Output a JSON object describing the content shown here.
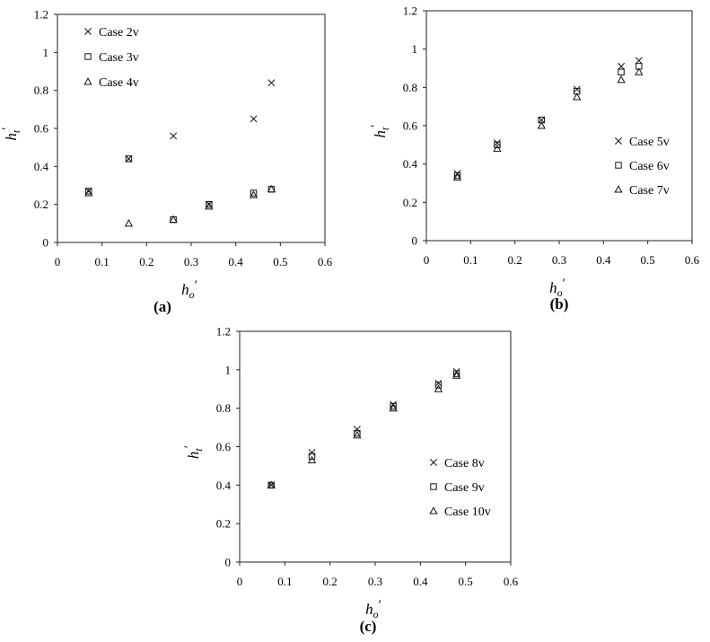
{
  "chart_data": [
    {
      "type": "scatter",
      "panel_label": "(a)",
      "xlabel": {
        "base": "h",
        "sub": "o",
        "prime": "′"
      },
      "ylabel": {
        "base": "h",
        "sub": "t",
        "prime": "′"
      },
      "xlim": [
        0,
        0.6
      ],
      "ylim": [
        0,
        1.2
      ],
      "xticks": [
        "0",
        "0.1",
        "0.2",
        "0.3",
        "0.4",
        "0.5",
        "0.6"
      ],
      "yticks": [
        "0",
        "0.2",
        "0.4",
        "0.6",
        "0.8",
        "1",
        "1.2"
      ],
      "grid": false,
      "legend_position": "top-left",
      "series": [
        {
          "name": "Case 2v",
          "marker": "x",
          "points": [
            [
              0.07,
              0.27
            ],
            [
              0.16,
              0.44
            ],
            [
              0.26,
              0.56
            ],
            [
              0.34,
              0.2
            ],
            [
              0.44,
              0.65
            ],
            [
              0.48,
              0.84
            ]
          ]
        },
        {
          "name": "Case 3v",
          "marker": "square",
          "points": [
            [
              0.07,
              0.27
            ],
            [
              0.16,
              0.44
            ],
            [
              0.26,
              0.12
            ],
            [
              0.34,
              0.2
            ],
            [
              0.44,
              0.26
            ],
            [
              0.48,
              0.28
            ]
          ]
        },
        {
          "name": "Case 4v",
          "marker": "triangle",
          "points": [
            [
              0.07,
              0.26
            ],
            [
              0.16,
              0.1
            ],
            [
              0.26,
              0.12
            ],
            [
              0.34,
              0.19
            ],
            [
              0.44,
              0.25
            ],
            [
              0.48,
              0.28
            ]
          ]
        }
      ]
    },
    {
      "type": "scatter",
      "panel_label": "(b)",
      "xlabel": {
        "base": "h",
        "sub": "o",
        "prime": "′"
      },
      "ylabel": {
        "base": "h",
        "sub": "t",
        "prime": "′"
      },
      "xlim": [
        0,
        0.6
      ],
      "ylim": [
        0,
        1.2
      ],
      "xticks": [
        "0",
        "0.1",
        "0.2",
        "0.3",
        "0.4",
        "0.5",
        "0.6"
      ],
      "yticks": [
        "0",
        "0.2",
        "0.4",
        "0.6",
        "0.8",
        "1",
        "1.2"
      ],
      "grid": false,
      "legend_position": "right",
      "series": [
        {
          "name": "Case 5v",
          "marker": "x",
          "points": [
            [
              0.07,
              0.35
            ],
            [
              0.16,
              0.51
            ],
            [
              0.26,
              0.63
            ],
            [
              0.34,
              0.79
            ],
            [
              0.44,
              0.91
            ],
            [
              0.48,
              0.94
            ]
          ]
        },
        {
          "name": "Case 6v",
          "marker": "square",
          "points": [
            [
              0.07,
              0.34
            ],
            [
              0.16,
              0.5
            ],
            [
              0.26,
              0.63
            ],
            [
              0.34,
              0.78
            ],
            [
              0.44,
              0.88
            ],
            [
              0.48,
              0.91
            ]
          ]
        },
        {
          "name": "Case 7v",
          "marker": "triangle",
          "points": [
            [
              0.07,
              0.33
            ],
            [
              0.16,
              0.48
            ],
            [
              0.26,
              0.6
            ],
            [
              0.34,
              0.75
            ],
            [
              0.44,
              0.84
            ],
            [
              0.48,
              0.88
            ]
          ]
        }
      ]
    },
    {
      "type": "scatter",
      "panel_label": "(c)",
      "xlabel": {
        "base": "h",
        "sub": "o",
        "prime": "′"
      },
      "ylabel": {
        "base": "h",
        "sub": "t",
        "prime": "′"
      },
      "xlim": [
        0,
        0.6
      ],
      "ylim": [
        0,
        1.2
      ],
      "xticks": [
        "0",
        "0.1",
        "0.2",
        "0.3",
        "0.4",
        "0.5",
        "0.6"
      ],
      "yticks": [
        "0",
        "0.2",
        "0.4",
        "0.6",
        "0.8",
        "1",
        "1.2"
      ],
      "grid": false,
      "legend_position": "right",
      "series": [
        {
          "name": "Case 8v",
          "marker": "x",
          "points": [
            [
              0.07,
              0.4
            ],
            [
              0.16,
              0.57
            ],
            [
              0.26,
              0.69
            ],
            [
              0.34,
              0.82
            ],
            [
              0.44,
              0.93
            ],
            [
              0.48,
              0.99
            ]
          ]
        },
        {
          "name": "Case 9v",
          "marker": "square",
          "points": [
            [
              0.07,
              0.4
            ],
            [
              0.16,
              0.55
            ],
            [
              0.26,
              0.67
            ],
            [
              0.34,
              0.81
            ],
            [
              0.44,
              0.92
            ],
            [
              0.48,
              0.98
            ]
          ]
        },
        {
          "name": "Case 10v",
          "marker": "triangle",
          "points": [
            [
              0.07,
              0.4
            ],
            [
              0.16,
              0.53
            ],
            [
              0.26,
              0.66
            ],
            [
              0.34,
              0.8
            ],
            [
              0.44,
              0.9
            ],
            [
              0.48,
              0.97
            ]
          ]
        }
      ]
    }
  ]
}
